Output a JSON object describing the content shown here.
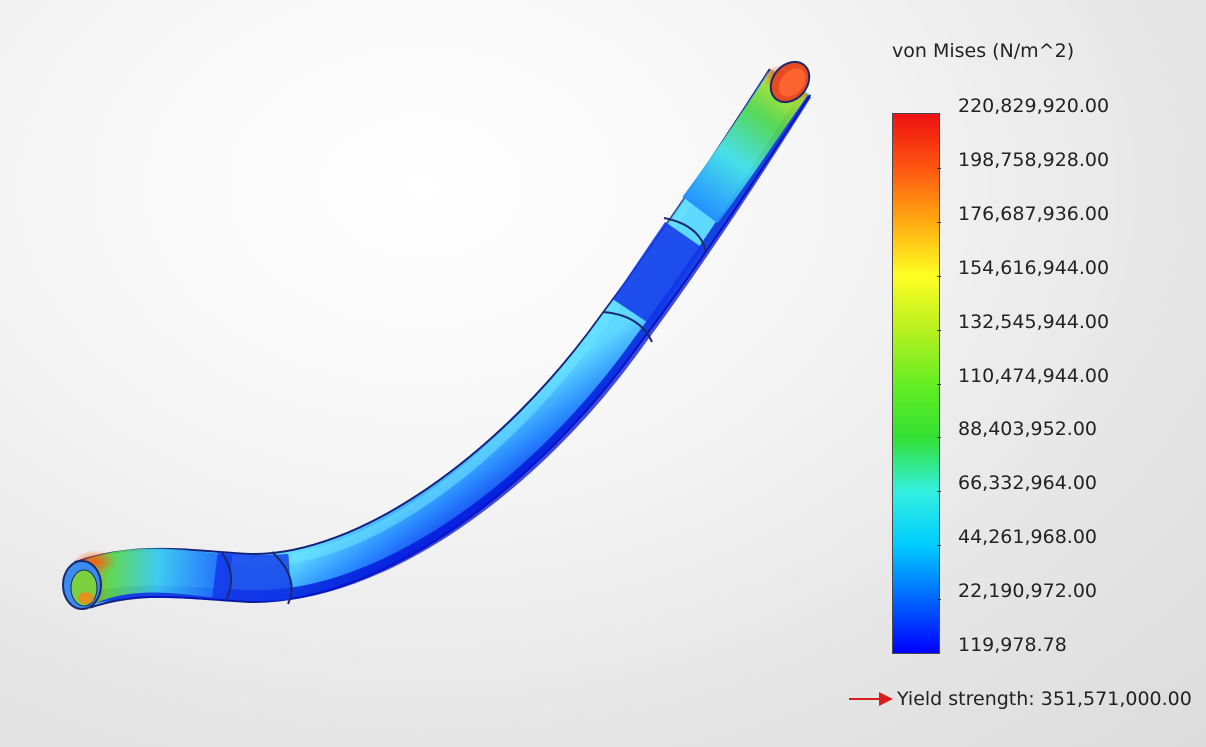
{
  "legend": {
    "title": "von Mises (N/m^2)",
    "ticks": [
      "220,829,920.00",
      "198,758,928.00",
      "176,687,936.00",
      "154,616,944.00",
      "132,545,944.00",
      "110,474,944.00",
      "88,403,952.00",
      "66,332,964.00",
      "44,261,968.00",
      "22,190,972.00",
      "119,978.78"
    ],
    "tick_values": [
      220829920.0,
      198758928.0,
      176687936.0,
      154616944.0,
      132545944.0,
      110474944.0,
      88403952.0,
      66332964.0,
      44261968.0,
      22190972.0,
      119978.78
    ],
    "min_value": 119978.78,
    "max_value": 220829920.0,
    "colormap": [
      "#0000ff",
      "#0066ff",
      "#00ccff",
      "#33f0e0",
      "#33e033",
      "#66ee22",
      "#b8f020",
      "#ffff22",
      "#ffaa11",
      "#ff5511",
      "#ee1111"
    ],
    "yield": {
      "text": "Yield strength: 351,571,000.00",
      "arrow_color": "#d62020"
    }
  },
  "model": {
    "outline_color": "#1a2a6c",
    "base_color": "#1f4ff0"
  }
}
